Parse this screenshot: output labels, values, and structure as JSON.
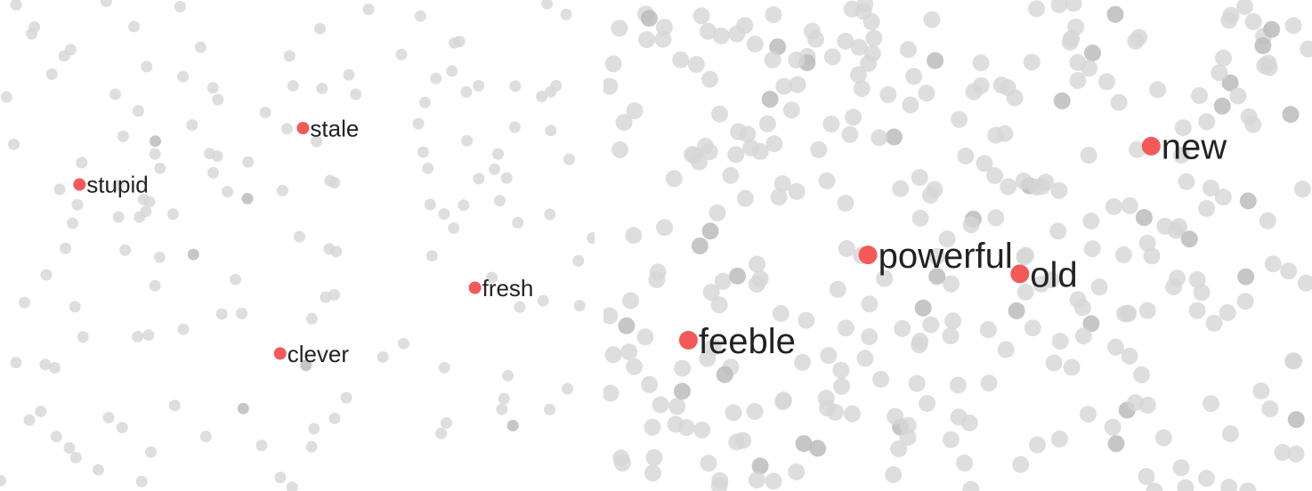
{
  "colors": {
    "highlight": "#f25a5a",
    "background_point": "#d6d6d6",
    "background_point_dark": "#bcbcbc",
    "label": "#222222"
  },
  "chart_data": [
    {
      "type": "scatter",
      "title": "",
      "xlabel": "",
      "ylabel": "",
      "grid": false,
      "xlim": [
        0,
        100
      ],
      "ylim": [
        0,
        100
      ],
      "highlighted": [
        {
          "label": "stale",
          "x": 51,
          "y": 75
        },
        {
          "label": "stupid",
          "x": 12,
          "y": 63
        },
        {
          "label": "fresh",
          "x": 81,
          "y": 41
        },
        {
          "label": "clever",
          "x": 47,
          "y": 27
        }
      ]
    },
    {
      "type": "scatter",
      "title": "",
      "xlabel": "",
      "ylabel": "",
      "grid": false,
      "xlim": [
        0,
        100
      ],
      "ylim": [
        0,
        100
      ],
      "highlighted": [
        {
          "label": "new",
          "x": 78,
          "y": 71
        },
        {
          "label": "powerful",
          "x": 37,
          "y": 48
        },
        {
          "label": "old",
          "x": 59,
          "y": 44
        },
        {
          "label": "feeble",
          "x": 11,
          "y": 30
        }
      ]
    }
  ]
}
